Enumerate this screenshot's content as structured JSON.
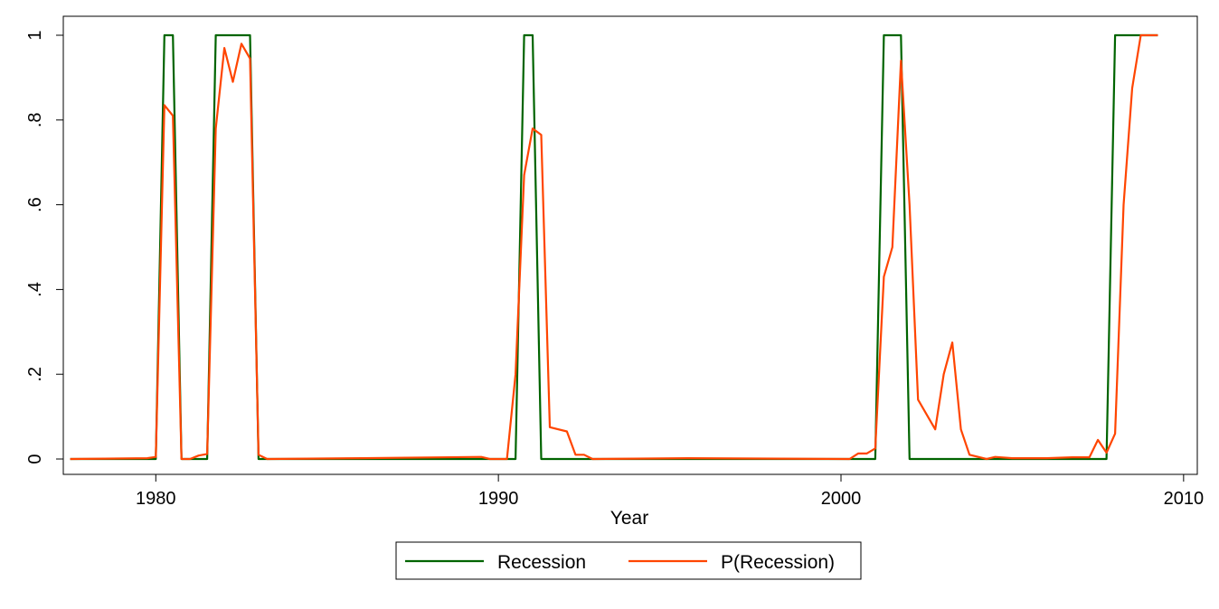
{
  "chart_data": {
    "type": "line",
    "xlabel": "Year",
    "ylabel": "",
    "xlim": [
      1977.3,
      2010.4
    ],
    "ylim": [
      -0.03,
      1.0
    ],
    "xticks": [
      1980,
      1990,
      2000,
      2010
    ],
    "xtick_labels": [
      "1980",
      "1990",
      "2000",
      "2010"
    ],
    "yticks": [
      0,
      0.2,
      0.4,
      0.6,
      0.8,
      1
    ],
    "ytick_labels": [
      "0",
      ".2",
      ".4",
      ".6",
      ".8",
      "1"
    ],
    "grid": false,
    "legend_position": "bottom",
    "series": [
      {
        "name": "Recession",
        "color": "#006400",
        "points": [
          [
            1977.5,
            0
          ],
          [
            1980.0,
            0
          ],
          [
            1980.25,
            1
          ],
          [
            1980.5,
            1
          ],
          [
            1980.75,
            0
          ],
          [
            1981.5,
            0
          ],
          [
            1981.75,
            1
          ],
          [
            1982.75,
            1
          ],
          [
            1983.0,
            0
          ],
          [
            1990.5,
            0
          ],
          [
            1990.75,
            1
          ],
          [
            1991.0,
            1
          ],
          [
            1991.25,
            0
          ],
          [
            2001.0,
            0
          ],
          [
            2001.25,
            1
          ],
          [
            2001.75,
            1
          ],
          [
            2002.0,
            0
          ],
          [
            2007.75,
            0
          ],
          [
            2008.0,
            1
          ],
          [
            2009.25,
            1
          ]
        ]
      },
      {
        "name": "P(Recession)",
        "color": "#ff4500",
        "points": [
          [
            1977.5,
            0.0
          ],
          [
            1979.75,
            0.002
          ],
          [
            1980.0,
            0.005
          ],
          [
            1980.25,
            0.835
          ],
          [
            1980.5,
            0.81
          ],
          [
            1980.75,
            0.0
          ],
          [
            1981.0,
            0.0
          ],
          [
            1981.25,
            0.008
          ],
          [
            1981.5,
            0.012
          ],
          [
            1981.75,
            0.78
          ],
          [
            1982.0,
            0.97
          ],
          [
            1982.25,
            0.89
          ],
          [
            1982.5,
            0.98
          ],
          [
            1982.75,
            0.945
          ],
          [
            1983.0,
            0.01
          ],
          [
            1983.25,
            0.0
          ],
          [
            1986.0,
            0.002
          ],
          [
            1989.5,
            0.005
          ],
          [
            1989.75,
            0.0
          ],
          [
            1990.25,
            0.0
          ],
          [
            1990.5,
            0.2
          ],
          [
            1990.75,
            0.67
          ],
          [
            1991.0,
            0.78
          ],
          [
            1991.25,
            0.765
          ],
          [
            1991.5,
            0.075
          ],
          [
            1992.0,
            0.065
          ],
          [
            1992.25,
            0.01
          ],
          [
            1992.5,
            0.01
          ],
          [
            1992.75,
            0.0
          ],
          [
            1995.5,
            0.002
          ],
          [
            2000.25,
            0.0
          ],
          [
            2000.5,
            0.013
          ],
          [
            2000.75,
            0.013
          ],
          [
            2001.0,
            0.025
          ],
          [
            2001.25,
            0.43
          ],
          [
            2001.5,
            0.5
          ],
          [
            2001.75,
            0.94
          ],
          [
            2002.0,
            0.6
          ],
          [
            2002.25,
            0.14
          ],
          [
            2002.75,
            0.07
          ],
          [
            2003.0,
            0.2
          ],
          [
            2003.25,
            0.275
          ],
          [
            2003.5,
            0.07
          ],
          [
            2003.75,
            0.01
          ],
          [
            2004.25,
            0.0
          ],
          [
            2004.5,
            0.005
          ],
          [
            2005.0,
            0.002
          ],
          [
            2006.0,
            0.002
          ],
          [
            2006.75,
            0.004
          ],
          [
            2007.25,
            0.004
          ],
          [
            2007.5,
            0.045
          ],
          [
            2007.75,
            0.015
          ],
          [
            2008.0,
            0.06
          ],
          [
            2008.25,
            0.6
          ],
          [
            2008.5,
            0.875
          ],
          [
            2008.75,
            1.0
          ],
          [
            2009.25,
            1.0
          ]
        ]
      }
    ]
  }
}
